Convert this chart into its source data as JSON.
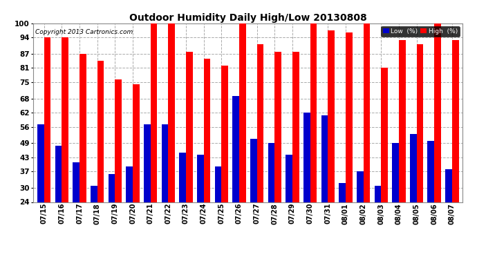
{
  "title": "Outdoor Humidity Daily High/Low 20130808",
  "copyright": "Copyright 2013 Cartronics.com",
  "dates": [
    "07/15",
    "07/16",
    "07/17",
    "07/18",
    "07/19",
    "07/20",
    "07/21",
    "07/22",
    "07/23",
    "07/24",
    "07/25",
    "07/26",
    "07/27",
    "07/28",
    "07/29",
    "07/30",
    "07/31",
    "08/01",
    "08/02",
    "08/03",
    "08/04",
    "08/05",
    "08/06",
    "08/07"
  ],
  "high": [
    94,
    94,
    87,
    84,
    76,
    74,
    100,
    100,
    88,
    85,
    82,
    100,
    91,
    88,
    88,
    100,
    97,
    96,
    100,
    81,
    93,
    91,
    100,
    93
  ],
  "low": [
    57,
    48,
    41,
    31,
    36,
    39,
    57,
    57,
    45,
    44,
    39,
    69,
    51,
    49,
    44,
    62,
    61,
    32,
    37,
    31,
    49,
    53,
    50,
    38
  ],
  "high_color": "#ff0000",
  "low_color": "#0000cc",
  "bg_color": "#ffffff",
  "grid_color": "#aaaaaa",
  "yticks": [
    24,
    30,
    37,
    43,
    49,
    56,
    62,
    68,
    75,
    81,
    87,
    94,
    100
  ],
  "ymin": 24,
  "ymax": 100,
  "bar_bottom": 24,
  "legend_bg": "#000000",
  "legend_low_color": "#0000cc",
  "legend_high_color": "#ff0000"
}
